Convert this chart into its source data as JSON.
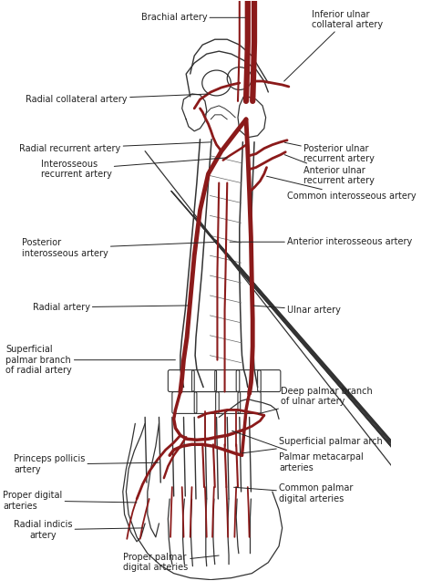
{
  "background_color": "#ffffff",
  "artery_color": "#8B1A1A",
  "bone_outline_color": "#333333",
  "line_color": "#222222",
  "label_fontsize": 7.0,
  "fig_width": 4.74,
  "fig_height": 6.37,
  "dpi": 100,
  "labels": {
    "brachial_artery": "Brachial artery",
    "inferior_ulnar": "Inferior ulnar\ncollateral artery",
    "radial_collateral": "Radial collateral artery",
    "radial_recurrent": "Radial recurrent artery",
    "posterior_ulnar_recurrent": "Posterior ulnar\nrecurrent artery",
    "anterior_ulnar_recurrent": "Anterior ulnar\nrecurrent artery",
    "interosseous_recurrent": "Interosseous\nrecurrent artery",
    "common_interosseous": "Common interosseous artery",
    "posterior_interosseous": "Posterior\ninterosseous artery",
    "anterior_interosseous": "Anterior interosseous artery",
    "radial_artery": "Radial artery",
    "ulnar_artery": "Ulnar artery",
    "superficial_palmar_branch": "Superficial\npalmar branch\nof radial artery",
    "deep_palmar_branch": "Deep palmar branch\nof ulnar artery",
    "princeps_pollicis": "Princeps pollicis\nartery",
    "superficial_palmar_arch": "Superficial palmar arch",
    "proper_digital": "Proper digital\narteries",
    "palmar_metacarpal": "Palmar metacarpal\narteries",
    "radial_indicis": "Radial indicis\nartery",
    "common_palmar_digital": "Common palmar\ndigital arteries",
    "proper_palmar_digital": "Proper palmar\ndigital arteries"
  }
}
